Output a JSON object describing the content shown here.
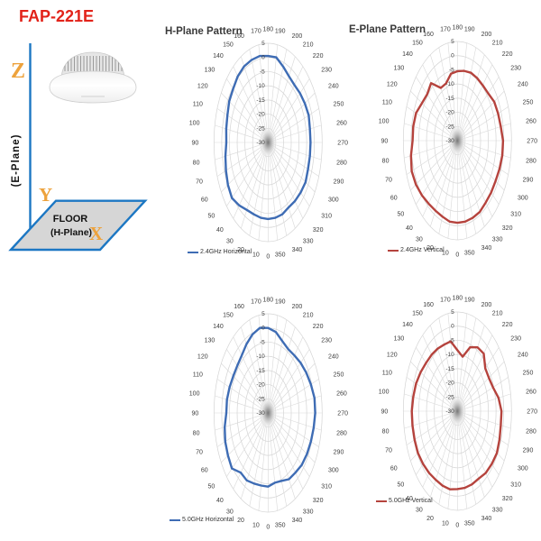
{
  "page": {
    "model_label": "FAP-221E"
  },
  "diagram": {
    "z_axis_label": "Z",
    "y_axis_label": "Y",
    "x_axis_label": "X",
    "e_plane_axis_label": "(E-Plane)",
    "floor_line1": "FLOOR",
    "floor_line2": "(H-Plane)",
    "colors": {
      "model_red": "#e2231a",
      "axis_orange": "#eda23c",
      "axis_line_blue": "#1c77c3",
      "floor_fill_gray": "#d6d6d6"
    }
  },
  "chart_data": [
    {
      "type": "polar",
      "title": "H-Plane Pattern",
      "legend": "2.4GHz Horizontal",
      "color": "#3e6cb4",
      "orientation": "0 at bottom, 90 left, 180 top, 270 right",
      "angles_deg": [
        0,
        10,
        20,
        30,
        40,
        50,
        60,
        70,
        80,
        90,
        100,
        110,
        120,
        130,
        140,
        150,
        160,
        170,
        180,
        190,
        200,
        210,
        220,
        230,
        240,
        250,
        260,
        270,
        280,
        290,
        300,
        310,
        320,
        330,
        340,
        350
      ],
      "values_db": [
        -3,
        -3,
        -3,
        -2.5,
        -1,
        0.5,
        0,
        -1,
        -2,
        -3,
        -2.5,
        -2,
        -1,
        -0.5,
        0.5,
        1,
        1,
        1,
        0.5,
        0.5,
        -1.5,
        -3,
        -3.5,
        -3,
        -2.5,
        -2,
        -2.5,
        -2.5,
        -2.5,
        -2.5,
        -2,
        -2.5,
        -3,
        -3.5,
        -3,
        -3
      ],
      "radial_ticks": [
        5,
        0,
        -5,
        -10,
        -15,
        -20,
        -25,
        -30
      ],
      "radial_range": [
        -30,
        5
      ],
      "grid": true,
      "legend_position": "bottom-left"
    },
    {
      "type": "polar",
      "title": "E-Plane Pattern",
      "legend": "2.4GHz Vertical",
      "color": "#b5433d",
      "orientation": "0 at bottom, 90 left, 180 top, 270 right",
      "angles_deg": [
        0,
        10,
        20,
        30,
        40,
        50,
        60,
        70,
        80,
        90,
        100,
        110,
        120,
        130,
        140,
        150,
        160,
        170,
        180,
        190,
        200,
        210,
        220,
        230,
        240,
        250,
        260,
        270,
        280,
        290,
        300,
        310,
        320,
        330,
        340,
        350
      ],
      "values_db": [
        -1,
        -1,
        -1.5,
        -1.5,
        -1,
        0,
        1,
        1.5,
        0.5,
        -1,
        -1,
        -1.5,
        -3.5,
        -4.5,
        -3.5,
        -8.5,
        -8.5,
        -6,
        -5.5,
        -5,
        -4.5,
        -4.5,
        -4.5,
        -4,
        -2.5,
        -2,
        -1.5,
        -0.5,
        -0.5,
        -1,
        -1.5,
        -1.5,
        -1.5,
        -1,
        -1,
        -1
      ],
      "radial_ticks": [
        5,
        0,
        -5,
        -10,
        -15,
        -20,
        -25,
        -30
      ],
      "radial_range": [
        -30,
        5
      ],
      "grid": true,
      "legend_position": "bottom-left"
    },
    {
      "type": "polar",
      "title": "",
      "legend": "5.0GHz Horizontal",
      "color": "#3e6cb4",
      "orientation": "0 at bottom, 90 left, 180 top, 270 right",
      "angles_deg": [
        0,
        10,
        20,
        30,
        40,
        50,
        60,
        70,
        80,
        90,
        100,
        110,
        120,
        130,
        140,
        150,
        160,
        170,
        180,
        190,
        200,
        210,
        220,
        230,
        240,
        250,
        260,
        270,
        280,
        290,
        300,
        310,
        320,
        330,
        340,
        350
      ],
      "values_db": [
        -4,
        -4,
        -3.5,
        -2.5,
        -2.5,
        0.5,
        0,
        -0.5,
        -1.5,
        -3,
        -3,
        -3.5,
        -4,
        -4,
        -3.5,
        -2,
        -0.5,
        0.5,
        0,
        -1,
        -3,
        -4,
        -3.5,
        -2.5,
        -1.5,
        -0.5,
        0.5,
        0.5,
        0,
        -0.5,
        -1,
        -1.5,
        -2.5,
        -3,
        -4.5,
        -5
      ],
      "radial_ticks": [
        5,
        0,
        -5,
        -10,
        -15,
        -20,
        -25,
        -30
      ],
      "radial_range": [
        -30,
        5
      ],
      "grid": true,
      "legend_position": "bottom-left"
    },
    {
      "type": "polar",
      "title": "",
      "legend": "5.0GHz Vertical",
      "color": "#b5433d",
      "orientation": "0 at bottom, 90 left, 180 top, 270 right",
      "angles_deg": [
        0,
        10,
        20,
        30,
        40,
        50,
        60,
        70,
        80,
        90,
        100,
        110,
        120,
        130,
        140,
        150,
        160,
        170,
        180,
        190,
        200,
        210,
        220,
        230,
        240,
        250,
        260,
        270,
        280,
        290,
        300,
        310,
        320,
        330,
        340,
        350
      ],
      "values_db": [
        -2.5,
        -2,
        -2,
        -2,
        -1.5,
        -1,
        -0.5,
        -0.5,
        -0.5,
        -0.5,
        -1,
        -1.5,
        -2.5,
        -3.5,
        -4,
        -4.5,
        -5,
        -5,
        -8.5,
        -10.5,
        -6,
        -4,
        -3.5,
        -6.5,
        -6.5,
        -5.5,
        -3,
        -1.5,
        -1.5,
        -1,
        -0.5,
        -1,
        -1.5,
        -2.5,
        -2.5,
        -2.5
      ],
      "radial_ticks": [
        5,
        0,
        -5,
        -10,
        -15,
        -20,
        -25,
        -30
      ],
      "radial_range": [
        -30,
        5
      ],
      "grid": true,
      "legend_position": "mid-left"
    }
  ]
}
